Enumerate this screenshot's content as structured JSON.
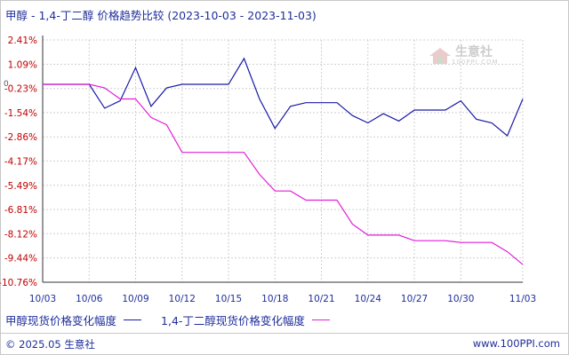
{
  "header": {
    "title": "甲醇 - 1,4-丁二醇 价格趋势比较",
    "date_range": "(2023-10-03 - 2023-11-03)"
  },
  "watermark": {
    "name": "生意社",
    "site": "100PPI.COM"
  },
  "legend": {
    "series1": "甲醇现货价格变化幅度",
    "series2": "1,4-丁二醇现货价格变化幅度"
  },
  "footer": {
    "copyright": "© 2025.05 生意社",
    "site": "www.100PPI.com"
  },
  "colors": {
    "series1": "#1a1aa8",
    "series2": "#e020d8",
    "axis": "#333333",
    "grid": "#d0d0d0",
    "text": "#1f2f9a"
  },
  "chart_data": {
    "type": "line",
    "title": "甲醇 - 1,4-丁二醇 价格趋势比较",
    "xlabel": "",
    "ylabel": "",
    "y_ticks": [
      2.41,
      1.09,
      -0.23,
      -1.54,
      -2.86,
      -4.17,
      -5.49,
      -6.81,
      -8.12,
      -9.44,
      -10.76
    ],
    "y_tick_labels": [
      "2.41%",
      "1.09%",
      "-0.23%",
      "-1.54%",
      "-2.86%",
      "-4.17%",
      "-5.49%",
      "-6.81%",
      "-8.12%",
      "-9.44%",
      "-10.76%"
    ],
    "zero_label": "0",
    "ylim": [
      -10.76,
      2.41
    ],
    "x_tick_labels": [
      "10/03",
      "10/06",
      "10/09",
      "10/12",
      "10/15",
      "10/18",
      "10/21",
      "10/24",
      "10/27",
      "10/30",
      "11/03"
    ],
    "x_tick_days": [
      0,
      3,
      6,
      9,
      12,
      15,
      18,
      21,
      24,
      27,
      31
    ],
    "x_day_span": 31,
    "grid": true,
    "legend_position": "bottom",
    "series": [
      {
        "name": "甲醇现货价格变化幅度",
        "points": [
          [
            0,
            0
          ],
          [
            1,
            0
          ],
          [
            2,
            0
          ],
          [
            3,
            0
          ],
          [
            4,
            -1.3
          ],
          [
            5,
            -0.9
          ],
          [
            6,
            0.9
          ],
          [
            7,
            -1.2
          ],
          [
            8,
            -0.2
          ],
          [
            9,
            0
          ],
          [
            10,
            0
          ],
          [
            11,
            0
          ],
          [
            12,
            0
          ],
          [
            13,
            1.4
          ],
          [
            14,
            -0.8
          ],
          [
            15,
            -2.4
          ],
          [
            16,
            -1.2
          ],
          [
            17,
            -1.0
          ],
          [
            18,
            -1.0
          ],
          [
            19,
            -1.0
          ],
          [
            20,
            -1.7
          ],
          [
            21,
            -2.1
          ],
          [
            22,
            -1.6
          ],
          [
            23,
            -2.0
          ],
          [
            24,
            -1.4
          ],
          [
            25,
            -1.4
          ],
          [
            26,
            -1.4
          ],
          [
            27,
            -0.9
          ],
          [
            28,
            -1.9
          ],
          [
            29,
            -2.1
          ],
          [
            30,
            -2.8
          ],
          [
            31,
            -0.8
          ]
        ]
      },
      {
        "name": "1,4-丁二醇现货价格变化幅度",
        "points": [
          [
            0,
            0
          ],
          [
            1,
            0
          ],
          [
            2,
            0
          ],
          [
            3,
            0
          ],
          [
            4,
            -0.2
          ],
          [
            5,
            -0.8
          ],
          [
            6,
            -0.8
          ],
          [
            7,
            -1.8
          ],
          [
            8,
            -2.2
          ],
          [
            9,
            -3.7
          ],
          [
            10,
            -3.7
          ],
          [
            11,
            -3.7
          ],
          [
            12,
            -3.7
          ],
          [
            13,
            -3.7
          ],
          [
            14,
            -4.9
          ],
          [
            15,
            -5.8
          ],
          [
            16,
            -5.8
          ],
          [
            17,
            -6.3
          ],
          [
            18,
            -6.3
          ],
          [
            19,
            -6.3
          ],
          [
            20,
            -7.6
          ],
          [
            21,
            -8.2
          ],
          [
            22,
            -8.2
          ],
          [
            23,
            -8.2
          ],
          [
            24,
            -8.5
          ],
          [
            25,
            -8.5
          ],
          [
            26,
            -8.5
          ],
          [
            27,
            -8.6
          ],
          [
            28,
            -8.6
          ],
          [
            29,
            -8.6
          ],
          [
            30,
            -9.1
          ],
          [
            31,
            -9.8
          ]
        ]
      }
    ]
  }
}
